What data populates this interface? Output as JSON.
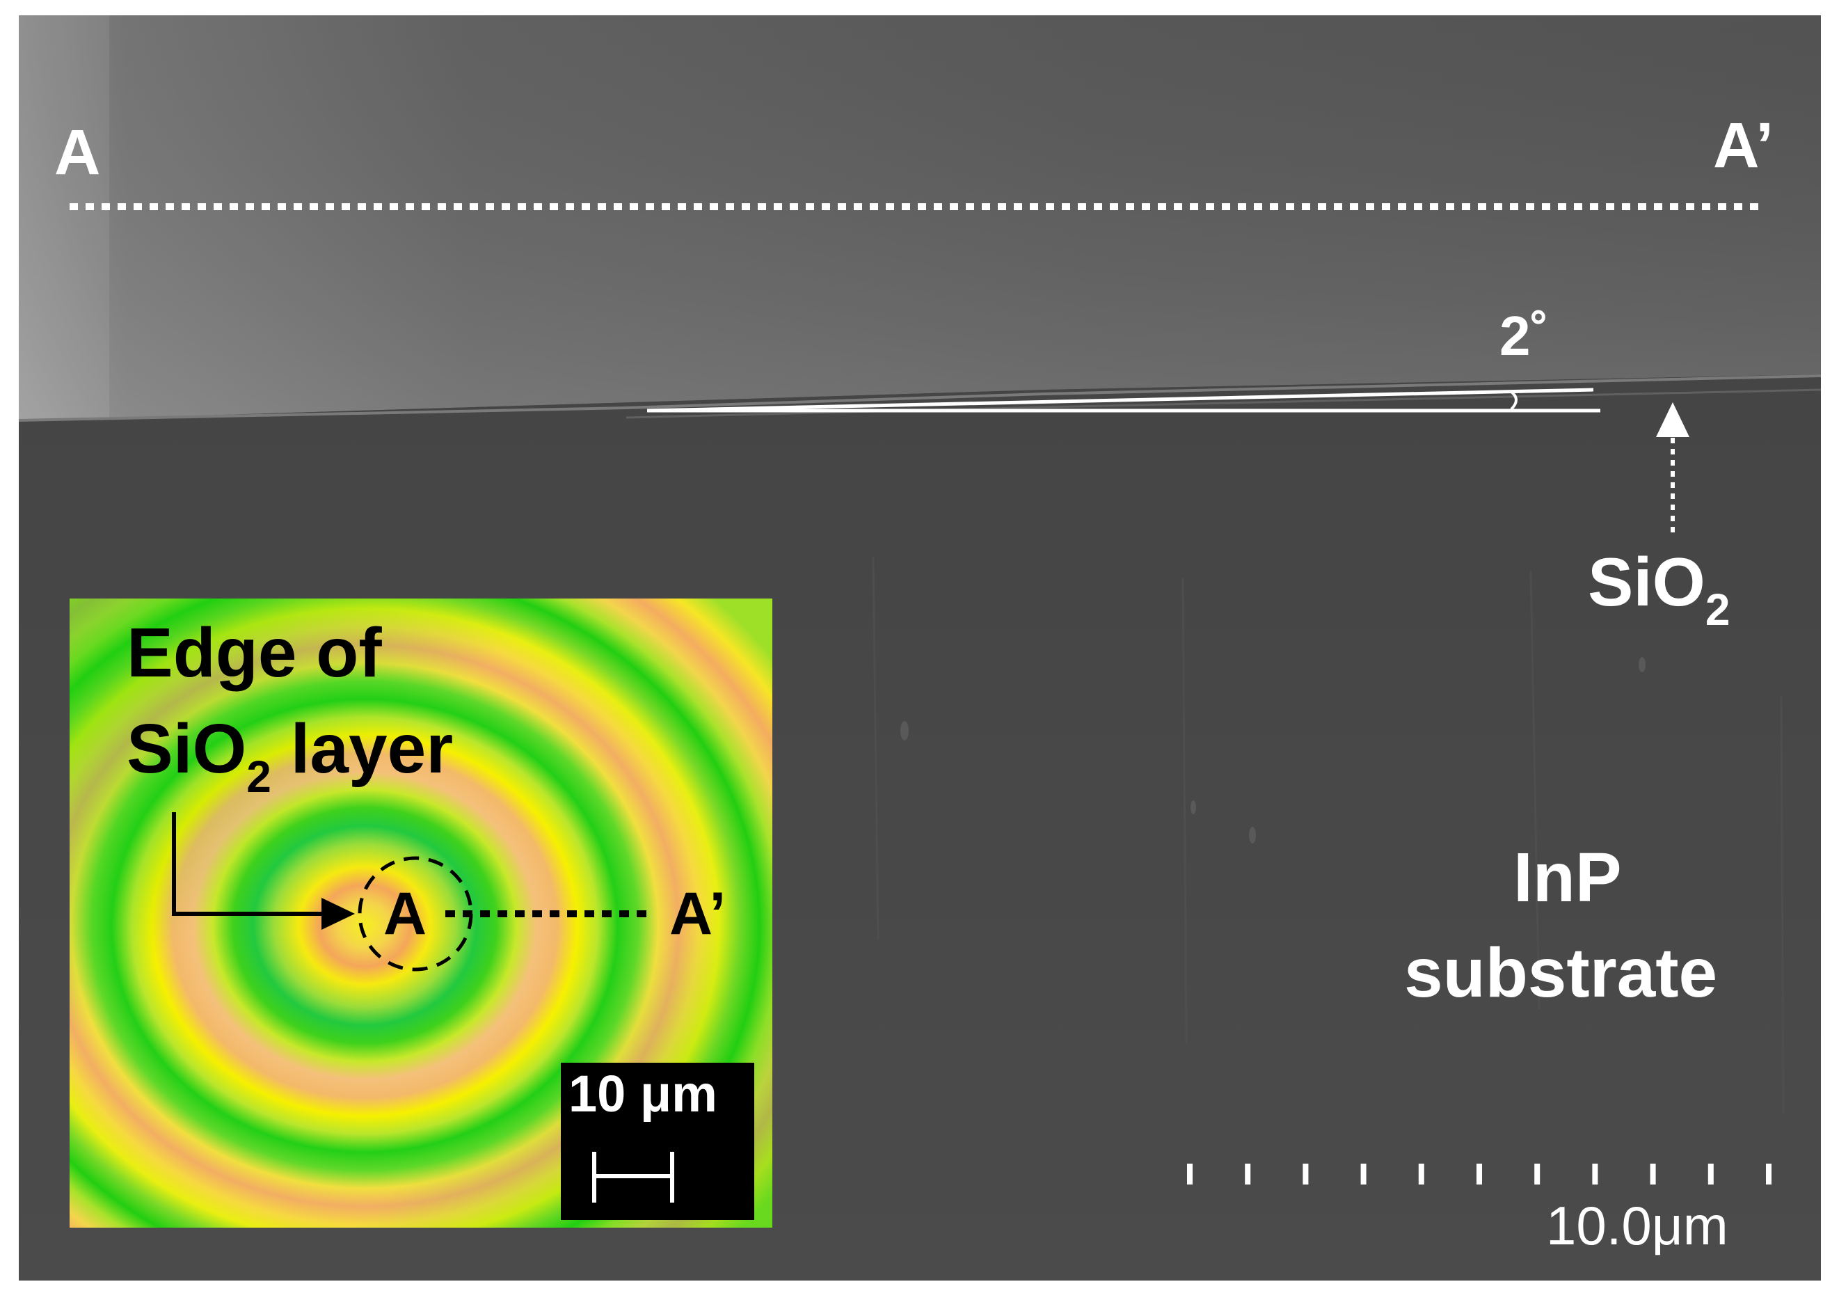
{
  "sem_image": {
    "label_a_left": "A",
    "label_a_right": "A’",
    "angle_label": "2˚",
    "sio2_label_main": "SiO",
    "sio2_label_sub": "2",
    "substrate_line1": "InP",
    "substrate_line2": "substrate",
    "scale_bar_label": "10.0μm",
    "scale_tick_count": 11
  },
  "inset": {
    "edge_label_line1": "Edge of",
    "edge_label_line2_main": "SiO",
    "edge_label_line2_sub": "2",
    "edge_label_line2_tail": " layer",
    "point_a": "A",
    "point_a_prime": "A’",
    "scale_label": "10 μm"
  },
  "colors": {
    "sem_background": "#4a4a4a",
    "sem_upper": "#5c5c5c",
    "annotation_white": "#ffffff",
    "inset_green": "#1fd214",
    "inset_yellow": "#f6f200",
    "inset_orange": "#f4a65a",
    "inset_text": "#000000"
  }
}
